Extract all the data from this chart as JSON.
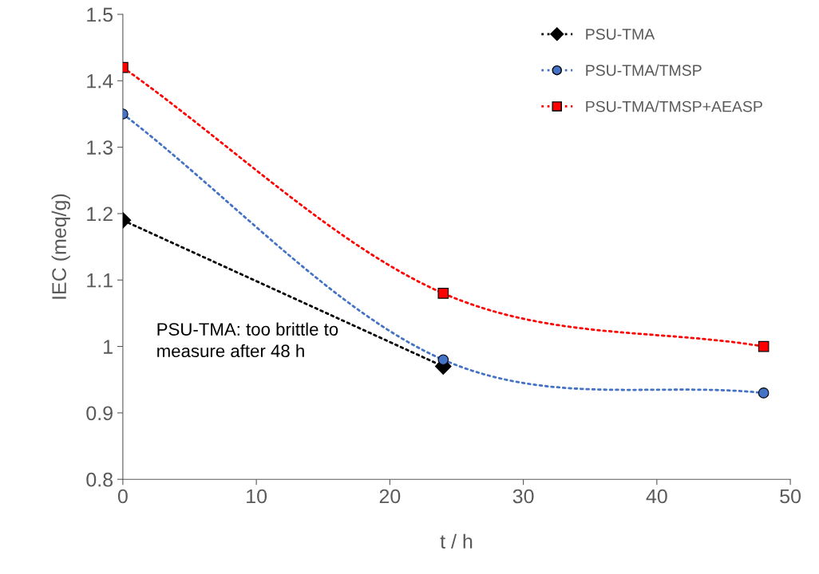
{
  "chart_data": {
    "type": "line",
    "xlabel": "t / h",
    "ylabel": "IEC (meq/g)",
    "xlim": [
      0,
      50
    ],
    "xticks": [
      0,
      10,
      20,
      30,
      40,
      50
    ],
    "ylim": [
      0.8,
      1.5
    ],
    "yticks": [
      0.8,
      0.9,
      1,
      1.1,
      1.2,
      1.3,
      1.4,
      1.5
    ],
    "grid": false,
    "legend": "top right",
    "line_style": "dotted",
    "series": [
      {
        "name": "PSU-TMA",
        "color": "#000000",
        "marker": "diamond",
        "x": [
          0,
          24
        ],
        "values": [
          1.19,
          0.97
        ]
      },
      {
        "name": "PSU-TMA/TMSP",
        "color": "#4472c4",
        "marker": "circle",
        "x": [
          0,
          24,
          48
        ],
        "values": [
          1.35,
          0.98,
          0.93
        ]
      },
      {
        "name": "PSU-TMA/TMSP+AEASP",
        "color": "#ff0000",
        "marker": "square",
        "x": [
          0,
          24,
          48
        ],
        "values": [
          1.42,
          1.08,
          1.0
        ]
      }
    ],
    "annotations": [
      "PSU-TMA: too brittle to\nmeasure after 48 h"
    ]
  }
}
